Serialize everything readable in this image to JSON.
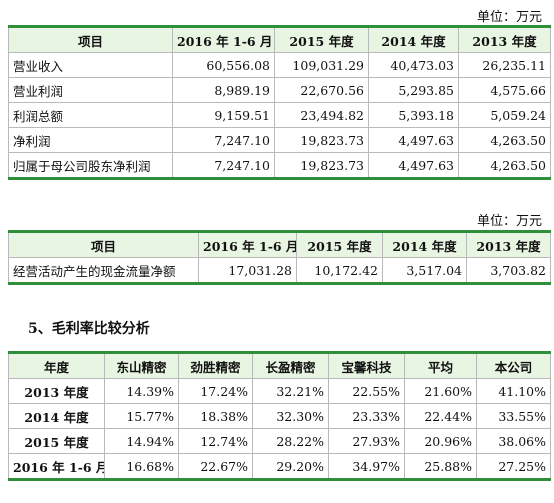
{
  "table1": {
    "unit": "单位：万元",
    "headers": [
      "项目",
      "2016 年 1-6 月",
      "2015 年度",
      "2014 年度",
      "2013 年度"
    ],
    "rows": [
      [
        "营业收入",
        "60,556.08",
        "109,031.29",
        "40,473.03",
        "26,235.11"
      ],
      [
        "营业利润",
        "8,989.19",
        "22,670.56",
        "5,293.85",
        "4,575.66"
      ],
      [
        "利润总额",
        "9,159.51",
        "23,494.82",
        "5,393.18",
        "5,059.24"
      ],
      [
        "净利润",
        "7,247.10",
        "19,823.73",
        "4,497.63",
        "4,263.50"
      ],
      [
        "归属于母公司股东净利润",
        "7,247.10",
        "19,823.73",
        "4,497.63",
        "4,263.50"
      ]
    ]
  },
  "table2": {
    "unit": "单位：万元",
    "headers": [
      "项目",
      "2016 年 1-6 月",
      "2015 年度",
      "2014 年度",
      "2013 年度"
    ],
    "rows": [
      [
        "经营活动产生的现金流量净额",
        "17,031.28",
        "10,172.42",
        "3,517.04",
        "3,703.82"
      ]
    ]
  },
  "section_heading": "5、毛利率比较分析",
  "table3": {
    "headers": [
      "年度",
      "东山精密",
      "劲胜精密",
      "长盈精密",
      "宝馨科技",
      "平均",
      "本公司"
    ],
    "rows": [
      [
        "2013 年度",
        "14.39%",
        "17.24%",
        "32.21%",
        "22.55%",
        "21.60%",
        "41.10%"
      ],
      [
        "2014 年度",
        "15.77%",
        "18.38%",
        "32.30%",
        "23.33%",
        "22.44%",
        "33.55%"
      ],
      [
        "2015 年度",
        "14.94%",
        "12.74%",
        "28.22%",
        "27.93%",
        "20.96%",
        "38.06%"
      ],
      [
        "2016 年 1-6 月",
        "16.68%",
        "22.67%",
        "29.20%",
        "34.97%",
        "25.88%",
        "27.25%"
      ]
    ]
  }
}
